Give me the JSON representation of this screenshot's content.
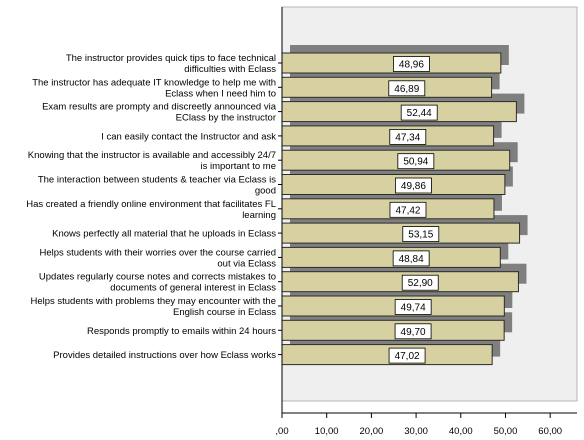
{
  "chart_data": {
    "type": "bar",
    "orientation": "horizontal",
    "categories": [
      [
        "The instructor provides quick tips to face technical",
        "difficulties with Eclass"
      ],
      [
        "The instructor has adequate IT knowledge to help me with",
        "Eclass when I need him to"
      ],
      [
        "Exam results are prompty and discreetly announced via",
        "EClass by the instructor"
      ],
      [
        "I can easily contact the Instructor and ask"
      ],
      [
        "Knowing that the instructor is available and accessibly 24/7",
        "is important to me"
      ],
      [
        "The interaction between students & teacher via Eclass is",
        "good"
      ],
      [
        "Has created a friendly online environment that facilitates FL",
        "learning"
      ],
      [
        "Knows perfectly all material that he uploads in Eclass"
      ],
      [
        "Helps students with their worries over the course carried",
        "out via Eclass"
      ],
      [
        "Updates regularly course notes and corrects mistakes to",
        "documents of general interest in Eclass"
      ],
      [
        "Helps students with problems they may encounter with the",
        "English course in Eclass"
      ],
      [
        "Responds promptly to emails within 24 hours"
      ],
      [
        "Provides detailed instructions over how Eclass works"
      ]
    ],
    "values": [
      48.96,
      46.89,
      52.44,
      47.34,
      50.94,
      49.86,
      47.42,
      53.15,
      48.84,
      52.9,
      49.74,
      49.7,
      47.02
    ],
    "data_labels": [
      "48,96",
      "46,89",
      "52,44",
      "47,34",
      "50,94",
      "49,86",
      "47,42",
      "53,15",
      "48,84",
      "52,90",
      "49,74",
      "49,70",
      "47,02"
    ],
    "xlim": [
      0,
      66
    ],
    "xticks": [
      0,
      10,
      20,
      30,
      40,
      50,
      60
    ],
    "xtick_labels": [
      ",00",
      "10,00",
      "20,00",
      "30,00",
      "40,00",
      "50,00",
      "60,00"
    ],
    "grid": false,
    "colors": {
      "bar_fill": "#d7d1a2",
      "bar_stroke": "#2b2b2b",
      "shadow": "#7f7f7f",
      "plot_background": "#efefef",
      "label_box": "#ffffff"
    }
  }
}
